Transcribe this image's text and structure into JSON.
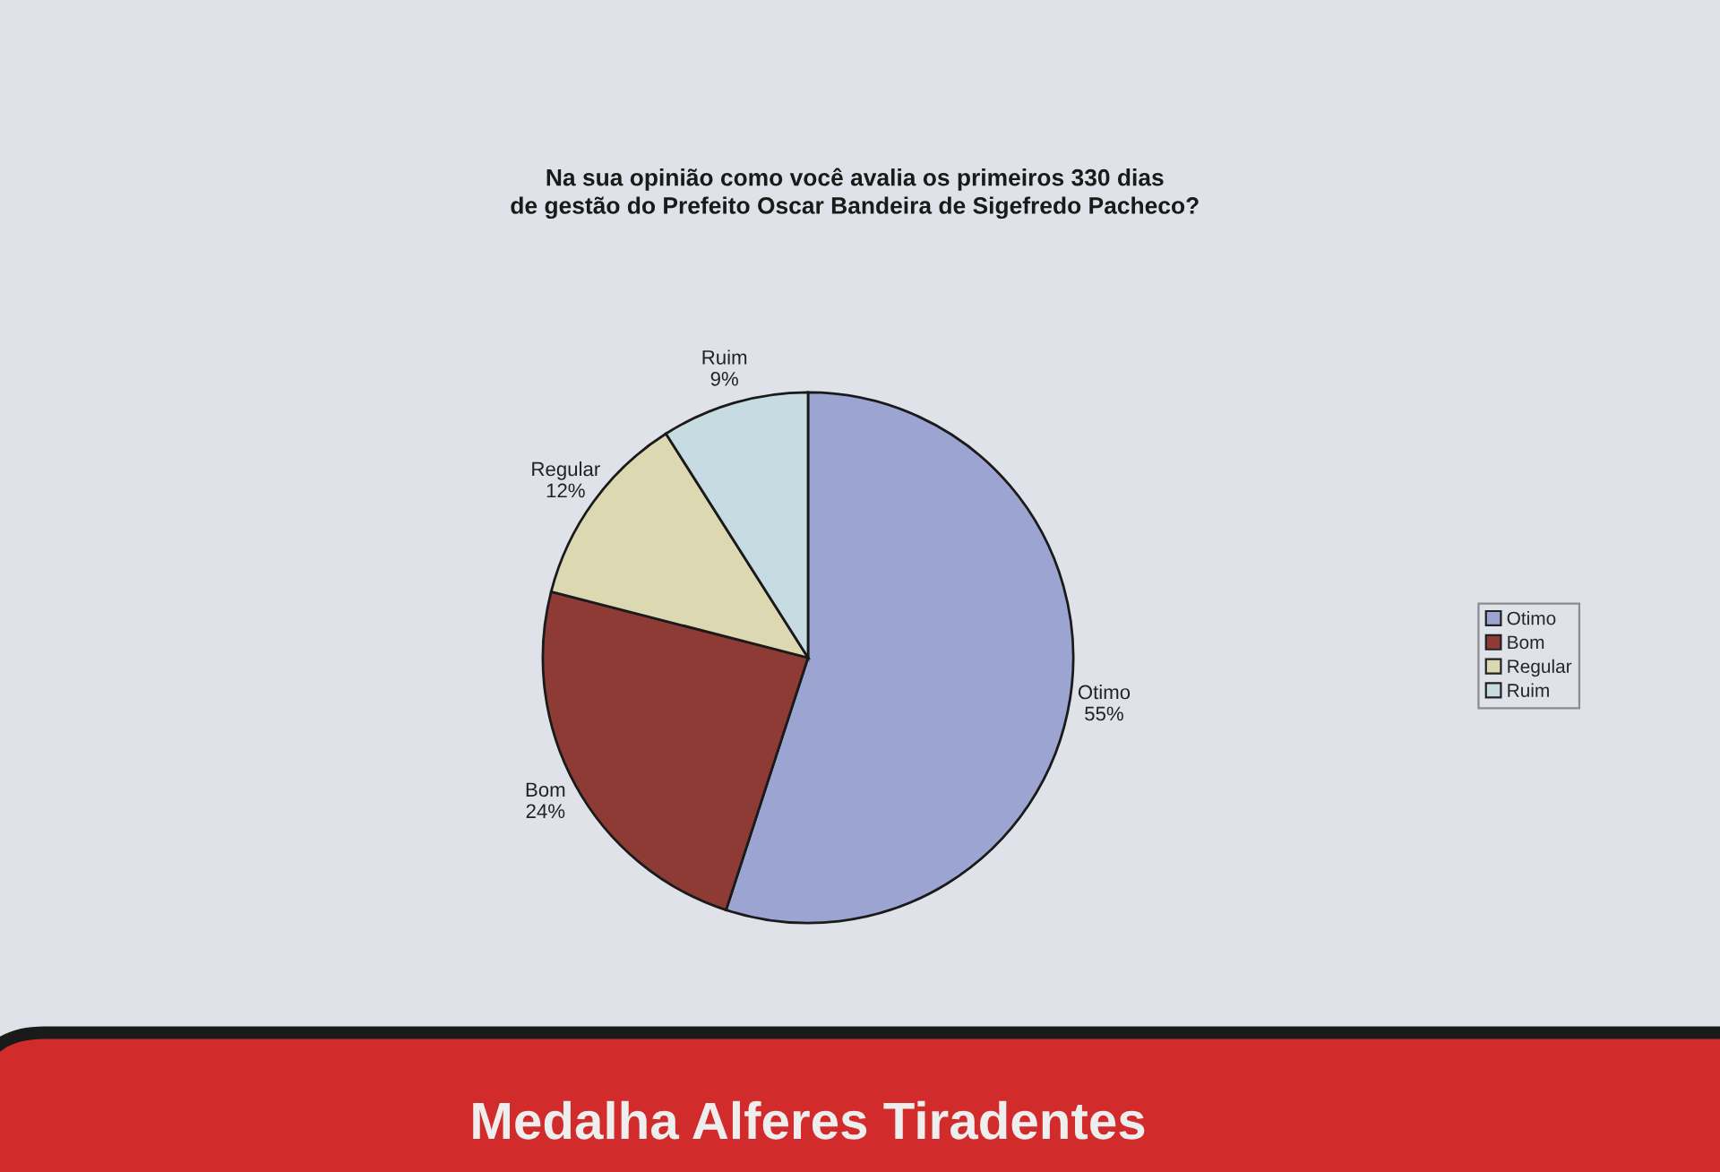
{
  "chart_data": {
    "type": "pie",
    "title": "Na sua opinião como você avalia os primeiros 330 dias\nde gestão do Prefeito Oscar Bandeira de Sigefredo Pacheco?",
    "categories": [
      "Otimo",
      "Bom",
      "Regular",
      "Ruim"
    ],
    "values": [
      55,
      24,
      12,
      9
    ],
    "value_labels": [
      "55%",
      "24%",
      "12%",
      "9%"
    ],
    "colors": [
      "#9ca5d2",
      "#8e3b36",
      "#dcd9b2",
      "#c6dbe2"
    ],
    "legend": "right",
    "annotations": [
      "Medalha Alferes Tiradentes"
    ]
  }
}
